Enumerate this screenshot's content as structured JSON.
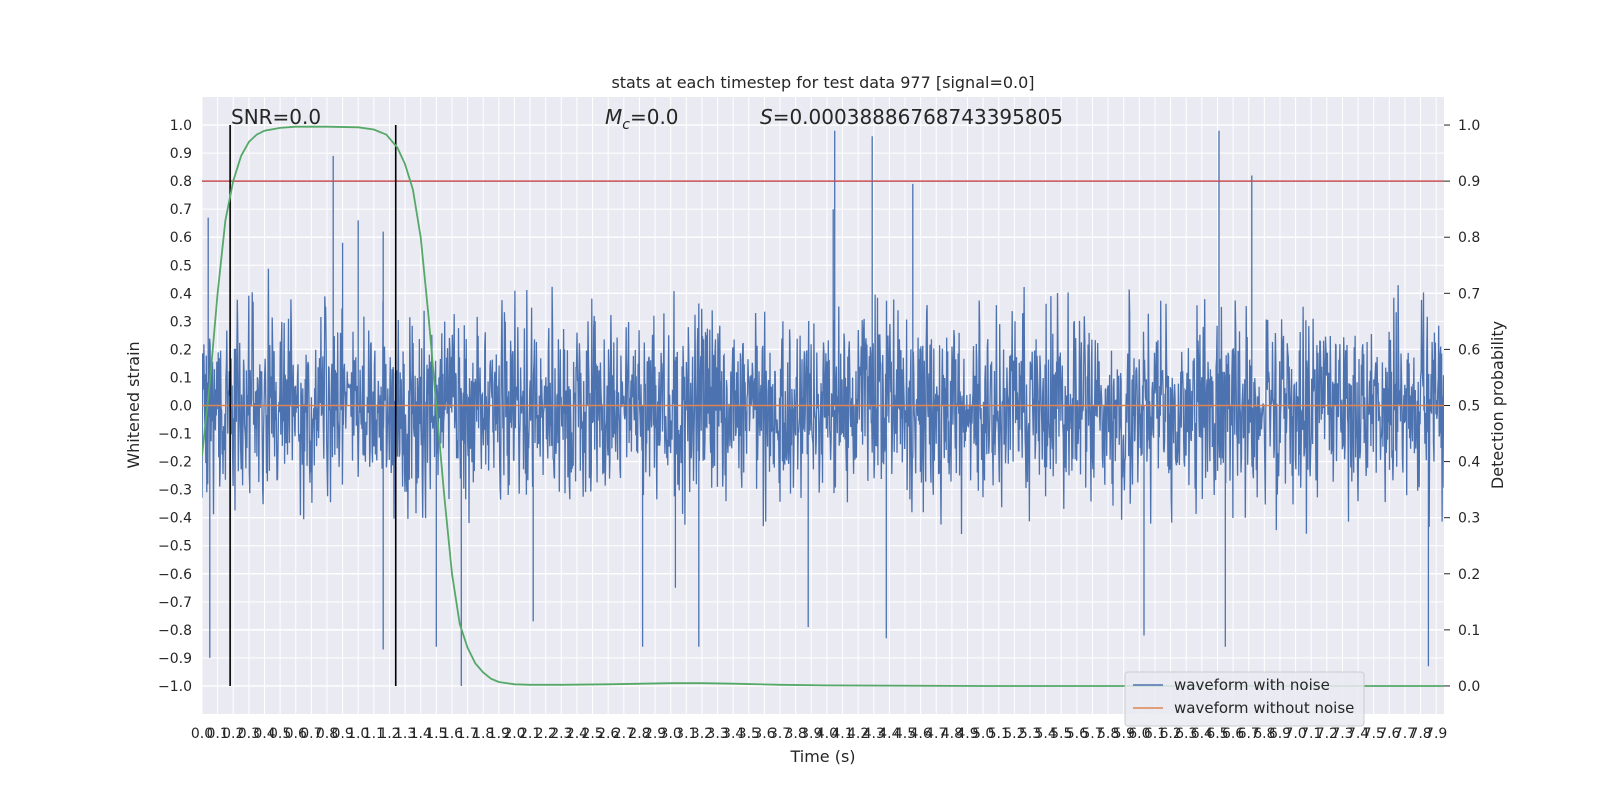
{
  "chart_data": {
    "type": "line",
    "title": "stats at each timestep for test data 977 [signal=0.0]",
    "xlabel": "Time (s)",
    "ylabel": "Whitened strain",
    "ylabel_right": "Detection probability",
    "xlim": [
      0.0,
      7.95
    ],
    "ylim": [
      -1.1,
      1.1
    ],
    "ylim_right": [
      -0.05,
      1.05
    ],
    "x_ticks": [
      "0.0",
      "0.1",
      "0.2",
      "0.3",
      "0.4",
      "0.5",
      "0.6",
      "0.7",
      "0.8",
      "0.9",
      "1.0",
      "1.1",
      "1.2",
      "1.3",
      "1.4",
      "1.5",
      "1.6",
      "1.7",
      "1.8",
      "1.9",
      "2.0",
      "2.1",
      "2.2",
      "2.3",
      "2.4",
      "2.5",
      "2.6",
      "2.7",
      "2.8",
      "2.9",
      "3.0",
      "3.1",
      "3.2",
      "3.3",
      "3.4",
      "3.5",
      "3.6",
      "3.7",
      "3.8",
      "3.9",
      "4.0",
      "4.1",
      "4.2",
      "4.3",
      "4.4",
      "4.5",
      "4.6",
      "4.7",
      "4.8",
      "4.9",
      "5.0",
      "5.1",
      "5.2",
      "5.3",
      "5.4",
      "5.5",
      "5.6",
      "5.7",
      "5.8",
      "5.9",
      "6.0",
      "6.1",
      "6.2",
      "6.3",
      "6.4",
      "6.5",
      "6.6",
      "6.7",
      "6.8",
      "6.9",
      "7.0",
      "7.1",
      "7.2",
      "7.3",
      "7.4",
      "7.5",
      "7.6",
      "7.7",
      "7.8",
      "7.9"
    ],
    "y_ticks": [
      "1.0",
      "0.9",
      "0.8",
      "0.7",
      "0.6",
      "0.5",
      "0.4",
      "0.3",
      "0.2",
      "0.1",
      "0.0",
      "-0.1",
      "-0.2",
      "-0.3",
      "-0.4",
      "-0.5",
      "-0.6",
      "-0.7",
      "-0.8",
      "-0.9",
      "-1.0"
    ],
    "y_right_ticks": [
      "1.0",
      "0.9",
      "0.8",
      "0.7",
      "0.6",
      "0.5",
      "0.4",
      "0.3",
      "0.2",
      "0.1",
      "0.0"
    ],
    "grid": true,
    "legend_position": "bottom-right",
    "annotations": {
      "snr": "SNR=0.0",
      "mc_symbol": "M",
      "mc_sub": "c",
      "mc_value": "=0.0",
      "s_symbol": "S",
      "s_value": "=0.00038886768743395805"
    },
    "series": [
      {
        "name": "waveform with noise",
        "color": "#4c72b0",
        "description_axis": "left",
        "noise_envelope": 0.28,
        "spikes": [
          {
            "x": 0.05,
            "y": -0.9
          },
          {
            "x": 0.04,
            "y": 0.67
          },
          {
            "x": 0.84,
            "y": 0.89
          },
          {
            "x": 0.9,
            "y": 0.58
          },
          {
            "x": 1.16,
            "y": -0.87
          },
          {
            "x": 1.66,
            "y": -1.0
          },
          {
            "x": 4.05,
            "y": 0.98
          },
          {
            "x": 4.04,
            "y": 0.7
          },
          {
            "x": 4.29,
            "y": 0.96
          },
          {
            "x": 4.38,
            "y": -0.83
          },
          {
            "x": 4.55,
            "y": 0.79
          },
          {
            "x": 6.51,
            "y": 0.98
          },
          {
            "x": 6.72,
            "y": 0.82
          },
          {
            "x": 6.55,
            "y": -0.86
          },
          {
            "x": 6.03,
            "y": -0.82
          },
          {
            "x": 7.85,
            "y": -0.93
          },
          {
            "x": 2.82,
            "y": -0.86
          },
          {
            "x": 3.18,
            "y": -0.86
          },
          {
            "x": 3.03,
            "y": -0.65
          },
          {
            "x": 2.12,
            "y": -0.77
          },
          {
            "x": 3.88,
            "y": -0.79
          },
          {
            "x": 1.0,
            "y": 0.66
          },
          {
            "x": 1.16,
            "y": 0.62
          },
          {
            "x": 1.5,
            "y": -0.86
          }
        ]
      },
      {
        "name": "waveform without noise",
        "color": "#dd8452",
        "description_axis": "left",
        "x": [
          0.0,
          7.95
        ],
        "y": [
          0.0,
          0.0
        ]
      },
      {
        "name": "",
        "color": "#55a868",
        "axis": "right",
        "x": [
          0.0,
          0.05,
          0.1,
          0.15,
          0.2,
          0.25,
          0.3,
          0.35,
          0.4,
          0.5,
          0.6,
          0.8,
          1.0,
          1.1,
          1.18,
          1.25,
          1.3,
          1.35,
          1.4,
          1.45,
          1.5,
          1.55,
          1.6,
          1.65,
          1.7,
          1.75,
          1.8,
          1.85,
          1.9,
          2.0,
          2.1,
          2.3,
          2.6,
          3.0,
          3.2,
          3.4,
          3.7,
          4.0,
          5.0,
          6.0,
          7.0,
          7.95
        ],
        "y": [
          0.41,
          0.54,
          0.7,
          0.83,
          0.9,
          0.945,
          0.97,
          0.983,
          0.99,
          0.995,
          0.997,
          0.997,
          0.996,
          0.992,
          0.983,
          0.96,
          0.93,
          0.885,
          0.8,
          0.66,
          0.5,
          0.34,
          0.2,
          0.11,
          0.068,
          0.04,
          0.024,
          0.013,
          0.007,
          0.003,
          0.002,
          0.002,
          0.003,
          0.005,
          0.005,
          0.004,
          0.002,
          0.001,
          0.0,
          0.0,
          0.0,
          0.0
        ]
      },
      {
        "name": "",
        "color": "#c44e52",
        "axis": "right",
        "x": [
          0.0,
          7.95
        ],
        "y": [
          0.9,
          0.9
        ]
      }
    ],
    "vertical_lines": [
      {
        "x": 0.18,
        "y0": 0.0,
        "y1": 1.0,
        "color": "#000000"
      },
      {
        "x": 1.24,
        "y0": 0.0,
        "y1": 1.0,
        "color": "#000000"
      }
    ]
  }
}
